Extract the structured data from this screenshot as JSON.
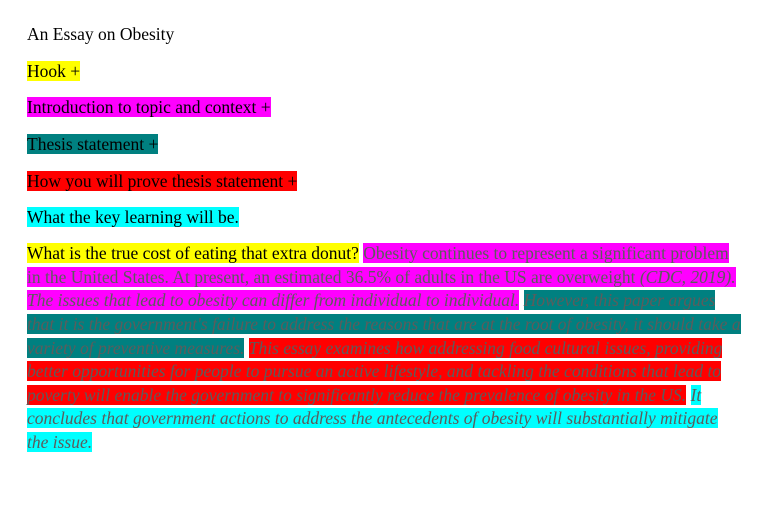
{
  "doc": {
    "title": "An Essay on Obesity",
    "outline": {
      "hook": "Hook +",
      "intro": "Introduction to topic and context +",
      "thesis": "Thesis statement +",
      "prove": "How you will prove thesis statement +",
      "learning": "What the key learning will be."
    },
    "paragraph": {
      "hook_sentence": "What is the true cost of eating that extra donut?",
      "context_plain": "Obesity continues to represent a significant problem in the United States. At present, an estimated 36.5% of adults in the US are overweight",
      "context_italic": "(CDC, 2019). The issues that lead to obesity can differ from individual to individual.",
      "thesis_sentence": "However, this paper argues that it is the government's failure to address the reasons that are at the root of obesity, it should take a variety of preventive measures.",
      "method_sentence": "This essay examines how addressing food cultural issues, providing better opportunities for people to pursue an active lifestyle, and tackling the conditions that lead to poverty will enable the government to significantly reduce the prevalence of obesity in the US.",
      "learning_sentence": "It concludes that government actions to address the antecedents of obesity will substantially mitigate the issue."
    },
    "colors": {
      "hook": "#ffff00",
      "intro": "#ff00ff",
      "thesis": "#008080",
      "prove": "#ff0000",
      "learning": "#00ffff"
    }
  }
}
